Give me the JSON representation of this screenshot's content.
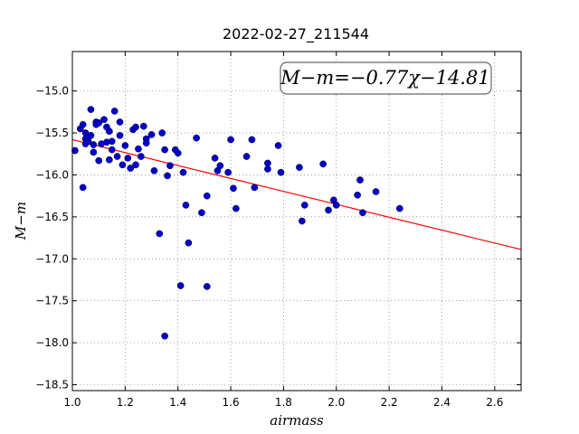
{
  "chart_data": {
    "type": "scatter",
    "title": "2022-02-27_211544",
    "xlabel": "airmass",
    "ylabel": "M−m",
    "xlim": [
      1.0,
      2.7
    ],
    "ylim": [
      -18.57,
      -14.53
    ],
    "y_inverted": true,
    "grid": true,
    "x_ticks": [
      "1.0",
      "1.2",
      "1.4",
      "1.6",
      "1.8",
      "2.0",
      "2.2",
      "2.4",
      "2.6"
    ],
    "y_ticks": [
      "−15.0",
      "−15.5",
      "−16.0",
      "−16.5",
      "−17.0",
      "−17.5",
      "−18.0",
      "−18.5"
    ],
    "colors": {
      "points": "#0000cc",
      "fit_line": "#ff0000"
    },
    "annotation": {
      "text": "M−m=−0.77χ−14.81",
      "placement": "top-right"
    },
    "fit": {
      "slope": -0.77,
      "intercept": -14.81
    },
    "points": [
      {
        "x": 1.01,
        "y": -15.71
      },
      {
        "x": 1.03,
        "y": -15.45
      },
      {
        "x": 1.04,
        "y": -15.4
      },
      {
        "x": 1.04,
        "y": -16.15
      },
      {
        "x": 1.05,
        "y": -15.5
      },
      {
        "x": 1.05,
        "y": -15.57
      },
      {
        "x": 1.05,
        "y": -15.63
      },
      {
        "x": 1.06,
        "y": -15.6
      },
      {
        "x": 1.06,
        "y": -15.55
      },
      {
        "x": 1.07,
        "y": -15.22
      },
      {
        "x": 1.07,
        "y": -15.53
      },
      {
        "x": 1.08,
        "y": -15.64
      },
      {
        "x": 1.08,
        "y": -15.73
      },
      {
        "x": 1.09,
        "y": -15.37
      },
      {
        "x": 1.09,
        "y": -15.4
      },
      {
        "x": 1.1,
        "y": -15.83
      },
      {
        "x": 1.1,
        "y": -15.38
      },
      {
        "x": 1.11,
        "y": -15.63
      },
      {
        "x": 1.12,
        "y": -15.34
      },
      {
        "x": 1.13,
        "y": -15.43
      },
      {
        "x": 1.13,
        "y": -15.61
      },
      {
        "x": 1.14,
        "y": -15.48
      },
      {
        "x": 1.14,
        "y": -15.82
      },
      {
        "x": 1.15,
        "y": -15.7
      },
      {
        "x": 1.15,
        "y": -15.6
      },
      {
        "x": 1.16,
        "y": -15.24
      },
      {
        "x": 1.17,
        "y": -15.78
      },
      {
        "x": 1.18,
        "y": -15.37
      },
      {
        "x": 1.18,
        "y": -15.53
      },
      {
        "x": 1.19,
        "y": -15.88
      },
      {
        "x": 1.2,
        "y": -15.65
      },
      {
        "x": 1.21,
        "y": -15.8
      },
      {
        "x": 1.22,
        "y": -15.92
      },
      {
        "x": 1.23,
        "y": -15.46
      },
      {
        "x": 1.24,
        "y": -15.43
      },
      {
        "x": 1.24,
        "y": -15.88
      },
      {
        "x": 1.25,
        "y": -15.69
      },
      {
        "x": 1.26,
        "y": -15.78
      },
      {
        "x": 1.27,
        "y": -15.42
      },
      {
        "x": 1.28,
        "y": -15.57
      },
      {
        "x": 1.28,
        "y": -15.62
      },
      {
        "x": 1.3,
        "y": -15.52
      },
      {
        "x": 1.31,
        "y": -15.95
      },
      {
        "x": 1.33,
        "y": -16.7
      },
      {
        "x": 1.34,
        "y": -15.5
      },
      {
        "x": 1.35,
        "y": -15.7
      },
      {
        "x": 1.35,
        "y": -17.92
      },
      {
        "x": 1.36,
        "y": -16.01
      },
      {
        "x": 1.37,
        "y": -15.89
      },
      {
        "x": 1.39,
        "y": -15.7
      },
      {
        "x": 1.4,
        "y": -15.74
      },
      {
        "x": 1.41,
        "y": -17.32
      },
      {
        "x": 1.42,
        "y": -15.97
      },
      {
        "x": 1.43,
        "y": -16.36
      },
      {
        "x": 1.44,
        "y": -16.81
      },
      {
        "x": 1.47,
        "y": -15.56
      },
      {
        "x": 1.49,
        "y": -16.45
      },
      {
        "x": 1.51,
        "y": -16.25
      },
      {
        "x": 1.51,
        "y": -17.33
      },
      {
        "x": 1.54,
        "y": -15.8
      },
      {
        "x": 1.55,
        "y": -15.95
      },
      {
        "x": 1.56,
        "y": -15.89
      },
      {
        "x": 1.59,
        "y": -15.97
      },
      {
        "x": 1.6,
        "y": -15.58
      },
      {
        "x": 1.61,
        "y": -16.16
      },
      {
        "x": 1.62,
        "y": -16.4
      },
      {
        "x": 1.66,
        "y": -15.78
      },
      {
        "x": 1.68,
        "y": -15.58
      },
      {
        "x": 1.69,
        "y": -16.15
      },
      {
        "x": 1.74,
        "y": -15.93
      },
      {
        "x": 1.74,
        "y": -15.86
      },
      {
        "x": 1.78,
        "y": -15.65
      },
      {
        "x": 1.79,
        "y": -15.97
      },
      {
        "x": 1.86,
        "y": -15.91
      },
      {
        "x": 1.87,
        "y": -16.55
      },
      {
        "x": 1.88,
        "y": -16.36
      },
      {
        "x": 1.95,
        "y": -15.87
      },
      {
        "x": 1.97,
        "y": -16.42
      },
      {
        "x": 1.99,
        "y": -16.3
      },
      {
        "x": 2.0,
        "y": -16.36
      },
      {
        "x": 2.08,
        "y": -16.24
      },
      {
        "x": 2.09,
        "y": -16.06
      },
      {
        "x": 2.1,
        "y": -16.45
      },
      {
        "x": 2.15,
        "y": -16.2
      },
      {
        "x": 2.24,
        "y": -16.4
      }
    ]
  }
}
